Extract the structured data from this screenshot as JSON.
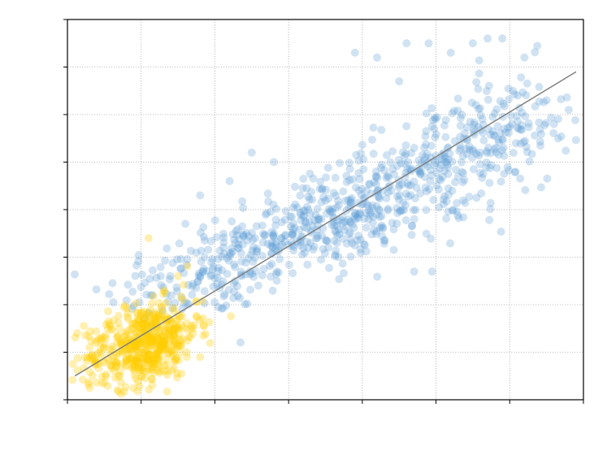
{
  "chart_data": {
    "type": "scatter",
    "title": "",
    "xlabel": "",
    "ylabel": "",
    "xlim": [
      0,
      7
    ],
    "ylim": [
      0,
      8
    ],
    "grid": true,
    "grid_style": "dotted",
    "tick_labels_visible": false,
    "x_ticks": [
      0,
      1,
      2,
      3,
      4,
      5,
      6,
      7
    ],
    "y_ticks": [
      0,
      1,
      2,
      3,
      4,
      5,
      6,
      7,
      8
    ],
    "fit_line": {
      "x": [
        0.1,
        6.9
      ],
      "y": [
        0.5,
        6.9
      ],
      "color": "#808080"
    },
    "series": [
      {
        "color": "#5b9bd5",
        "opacity": 0.28,
        "clusters": [
          {
            "cx": 1.9,
            "cy": 2.7,
            "sx": 0.7,
            "sy": 0.5,
            "n": 170
          },
          {
            "cx": 3.2,
            "cy": 3.6,
            "sx": 0.55,
            "sy": 0.5,
            "n": 200
          },
          {
            "cx": 4.2,
            "cy": 4.1,
            "sx": 0.55,
            "sy": 0.55,
            "n": 200
          },
          {
            "cx": 5.2,
            "cy": 5.1,
            "sx": 0.5,
            "sy": 0.6,
            "n": 170
          },
          {
            "cx": 6.0,
            "cy": 5.6,
            "sx": 0.4,
            "sy": 0.7,
            "n": 100
          }
        ],
        "outliers": [
          [
            3.9,
            7.3
          ],
          [
            4.2,
            7.2
          ],
          [
            4.6,
            7.5
          ],
          [
            4.9,
            7.5
          ],
          [
            5.2,
            7.3
          ],
          [
            5.5,
            7.5
          ],
          [
            5.7,
            7.6
          ],
          [
            5.9,
            7.6
          ],
          [
            6.2,
            7.2
          ],
          [
            6.5,
            6.3
          ],
          [
            6.6,
            5.8
          ],
          [
            6.8,
            6.1
          ],
          [
            2.5,
            5.2
          ],
          [
            2.8,
            5.0
          ],
          [
            1.8,
            4.3
          ],
          [
            1.6,
            3.7
          ],
          [
            2.2,
            4.6
          ],
          [
            4.5,
            6.7
          ]
        ]
      },
      {
        "color": "#ffcc00",
        "opacity": 0.3,
        "clusters": [
          {
            "cx": 1.0,
            "cy": 1.15,
            "sx": 0.38,
            "sy": 0.42,
            "n": 420
          },
          {
            "cx": 1.25,
            "cy": 1.4,
            "sx": 0.3,
            "sy": 0.35,
            "n": 120
          }
        ],
        "outliers": [
          [
            1.1,
            3.4
          ],
          [
            0.5,
            0.35
          ],
          [
            1.8,
            0.9
          ],
          [
            0.3,
            1.1
          ],
          [
            1.5,
            2.6
          ]
        ]
      }
    ]
  }
}
